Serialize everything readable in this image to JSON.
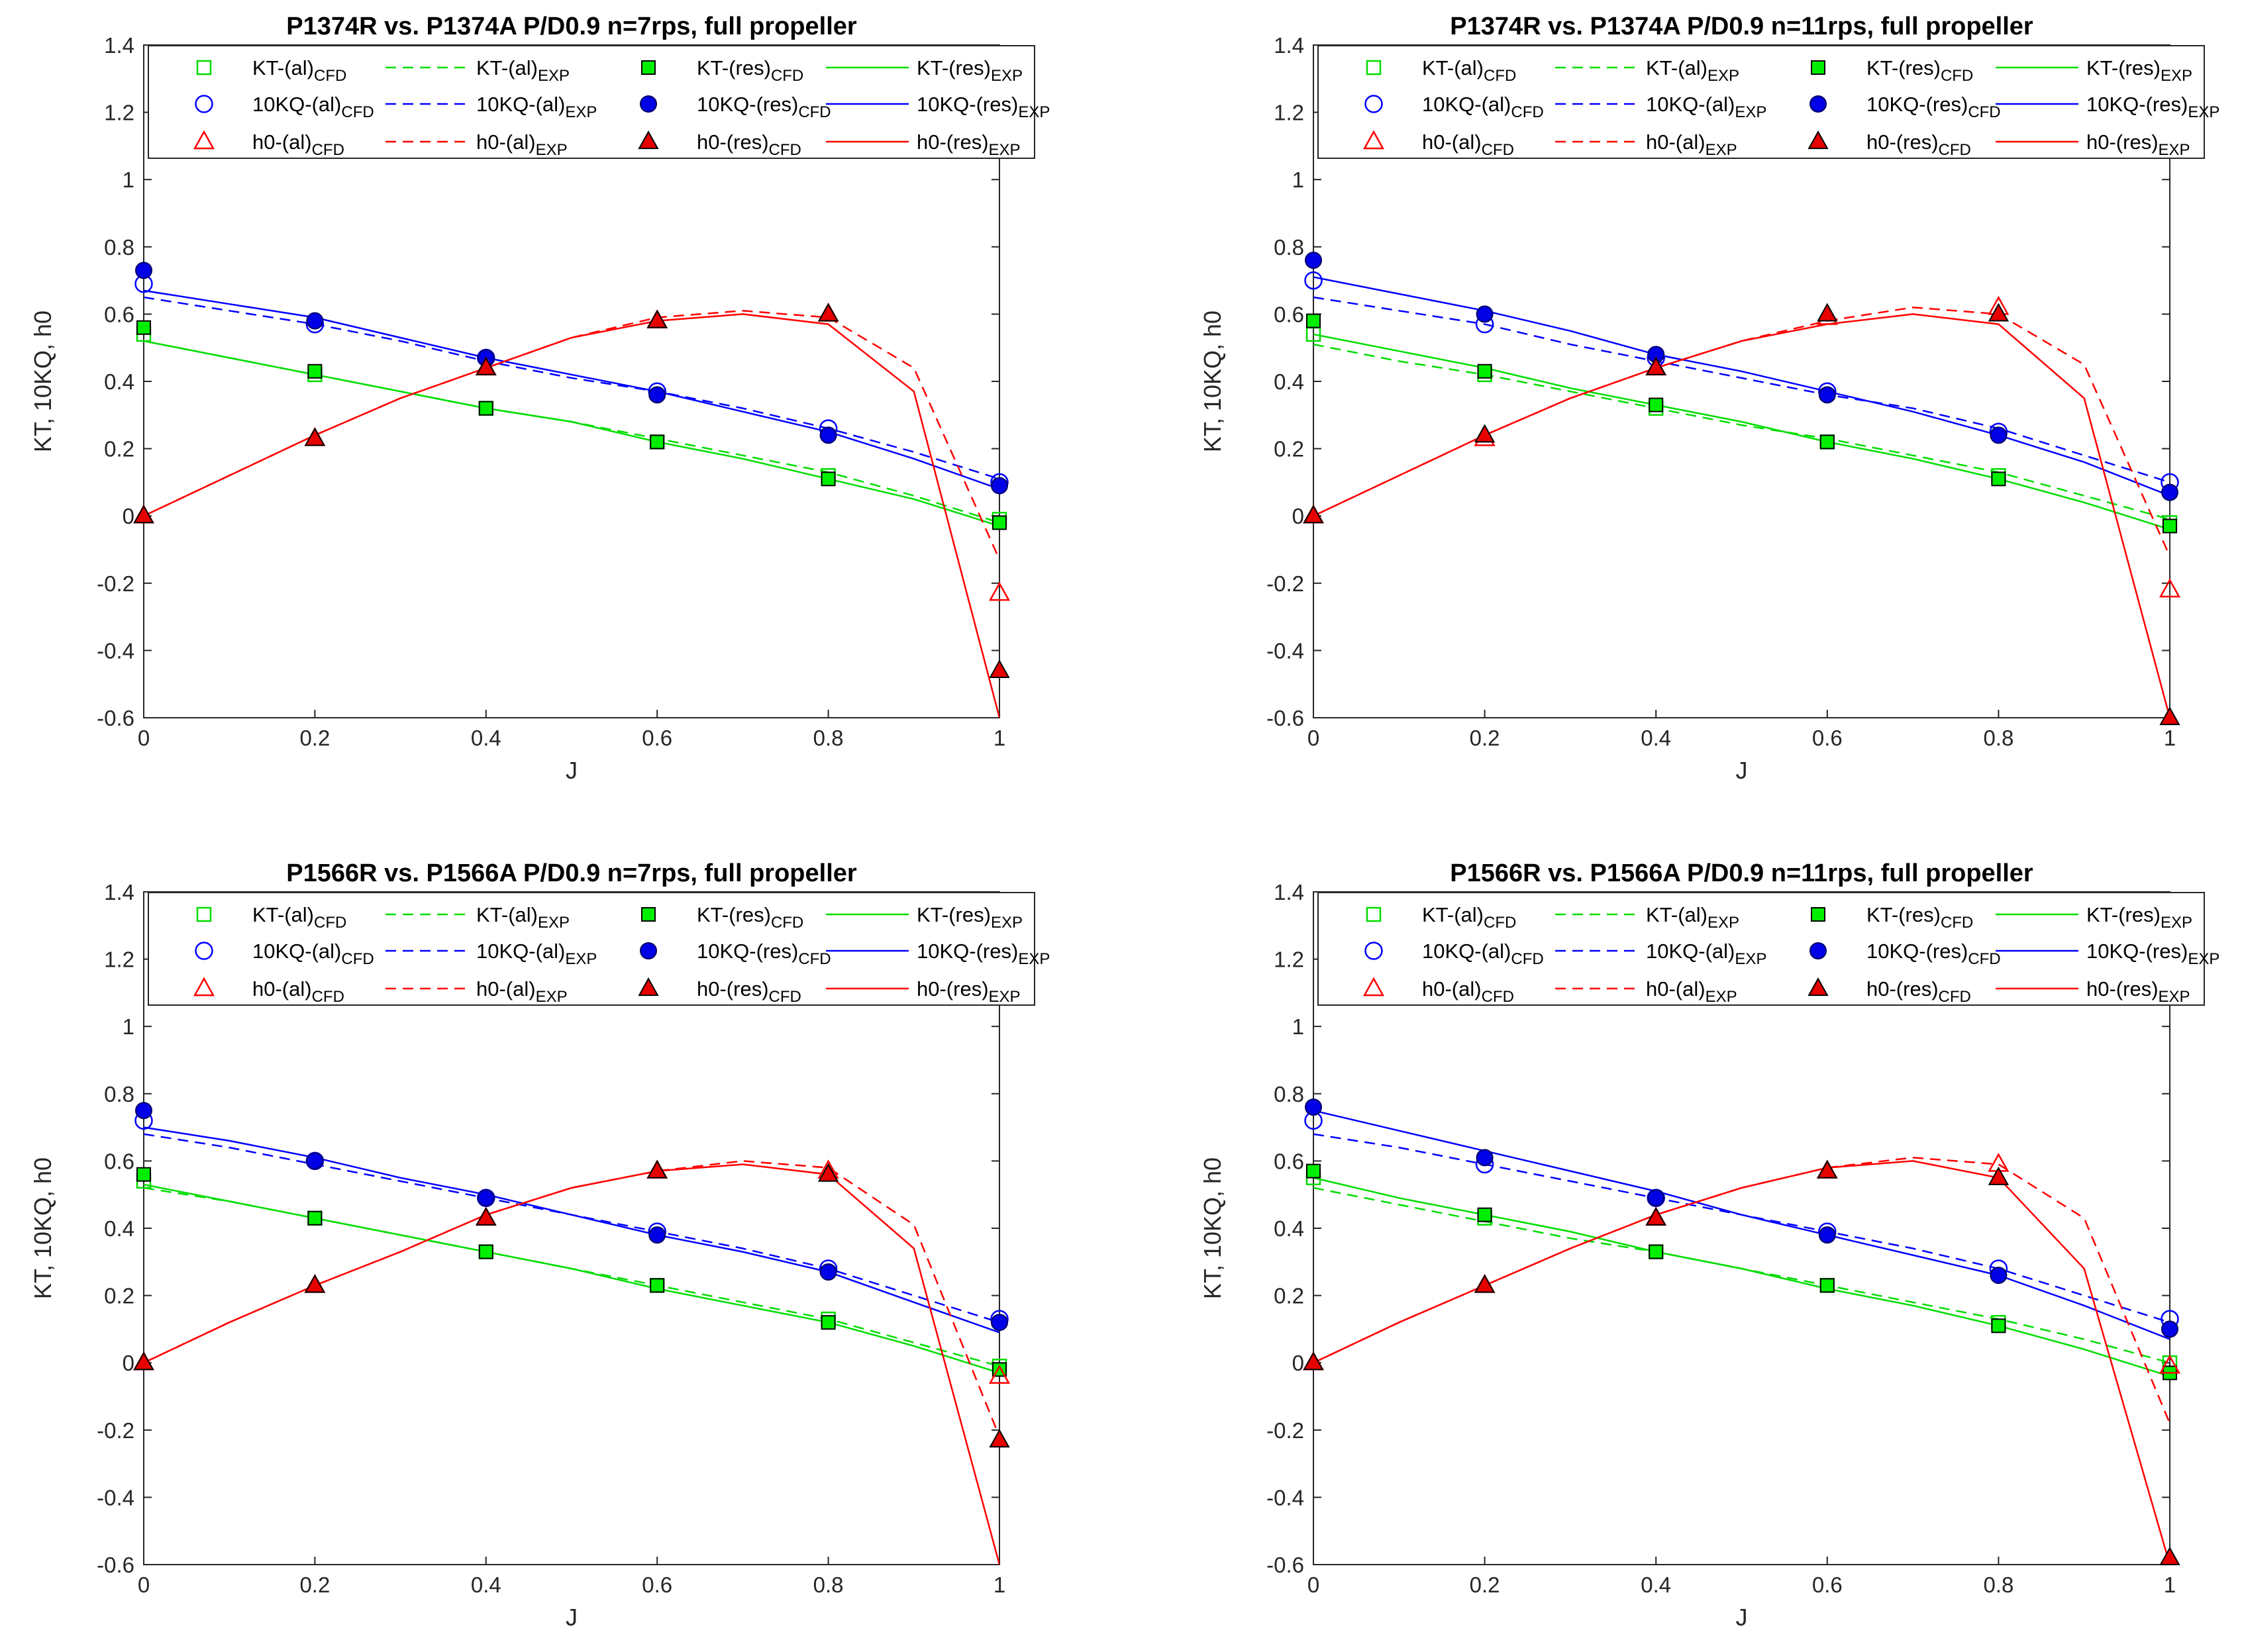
{
  "figure": {
    "colors": {
      "kt": "#00dd00",
      "kq": "#0000ff",
      "h0": "#ff0000",
      "axis": "#262626",
      "fill_kt": "#00ee00",
      "fill_kq": "#0000e6",
      "fill_h0": "#e60000"
    }
  },
  "chart_data": [
    {
      "type": "line",
      "title": "P1374R vs. P1374A P/D0.9 n=7rps, full propeller",
      "xlabel": "J",
      "ylabel": "KT, 10KQ, h0",
      "xlim": [
        0,
        1
      ],
      "ylim": [
        -0.6,
        1.4
      ],
      "x_ticks": [
        "0",
        "0.2",
        "0.4",
        "0.6",
        "0.8",
        "1"
      ],
      "y_ticks": [
        "-0.6",
        "-0.4",
        "-0.2",
        "0",
        "0.2",
        "0.4",
        "0.6",
        "0.8",
        "1",
        "1.2",
        "1.4"
      ],
      "legend": {
        "position": "top",
        "entries": [
          {
            "base": "KT-(al)",
            "sub": "CFD"
          },
          {
            "base": "KT-(al)",
            "sub": "EXP"
          },
          {
            "base": "KT-(res)",
            "sub": "CFD"
          },
          {
            "base": "KT-(res)",
            "sub": "EXP"
          },
          {
            "base": "10KQ-(al)",
            "sub": "CFD"
          },
          {
            "base": "10KQ-(al)",
            "sub": "EXP"
          },
          {
            "base": "10KQ-(res)",
            "sub": "CFD"
          },
          {
            "base": "10KQ-(res)",
            "sub": "EXP"
          },
          {
            "base": "h0-(al)",
            "sub": "CFD"
          },
          {
            "base": "h0-(al)",
            "sub": "EXP"
          },
          {
            "base": "h0-(res)",
            "sub": "CFD"
          },
          {
            "base": "h0-(res)",
            "sub": "EXP"
          }
        ]
      },
      "cfd_x": [
        0,
        0.2,
        0.4,
        0.6,
        0.8,
        1.0
      ],
      "exp_x": [
        0,
        0.1,
        0.2,
        0.3,
        0.4,
        0.5,
        0.6,
        0.7,
        0.8,
        0.9,
        1.0
      ],
      "series": [
        {
          "name": "KT-(al) CFD",
          "values": [
            0.54,
            0.42,
            0.32,
            0.22,
            0.12,
            -0.01
          ]
        },
        {
          "name": "KT-(al) EXP",
          "values": [
            0.52,
            0.47,
            0.42,
            0.37,
            0.32,
            0.28,
            0.23,
            0.18,
            0.13,
            0.06,
            -0.02
          ]
        },
        {
          "name": "KT-(res) CFD",
          "values": [
            0.56,
            0.43,
            0.32,
            0.22,
            0.11,
            -0.02
          ]
        },
        {
          "name": "KT-(res) EXP",
          "values": [
            0.52,
            0.47,
            0.42,
            0.37,
            0.32,
            0.28,
            0.22,
            0.17,
            0.11,
            0.05,
            -0.03
          ]
        },
        {
          "name": "10KQ-(al) CFD",
          "values": [
            0.69,
            0.57,
            0.47,
            0.37,
            0.26,
            0.1
          ]
        },
        {
          "name": "10KQ-(al) EXP",
          "values": [
            0.65,
            0.61,
            0.57,
            0.52,
            0.46,
            0.41,
            0.37,
            0.32,
            0.26,
            0.19,
            0.11
          ]
        },
        {
          "name": "10KQ-(res) CFD",
          "values": [
            0.73,
            0.58,
            0.47,
            0.36,
            0.24,
            0.09
          ]
        },
        {
          "name": "10KQ-(res) EXP",
          "values": [
            0.67,
            0.63,
            0.59,
            0.53,
            0.47,
            0.42,
            0.37,
            0.31,
            0.25,
            0.17,
            0.08
          ]
        },
        {
          "name": "h0-(al) CFD",
          "values": [
            0.0,
            0.23,
            0.44,
            0.58,
            0.6,
            -0.23
          ]
        },
        {
          "name": "h0-(al) EXP",
          "values": [
            0.0,
            0.12,
            0.24,
            0.35,
            0.44,
            0.53,
            0.59,
            0.61,
            0.59,
            0.44,
            -0.13
          ]
        },
        {
          "name": "h0-(res) CFD",
          "values": [
            0.0,
            0.23,
            0.44,
            0.58,
            0.6,
            -0.46
          ]
        },
        {
          "name": "h0-(res) EXP",
          "values": [
            0.0,
            0.12,
            0.24,
            0.35,
            0.44,
            0.53,
            0.58,
            0.6,
            0.57,
            0.37,
            -0.6
          ]
        }
      ]
    },
    {
      "type": "line",
      "title": "P1374R vs. P1374A P/D0.9 n=11rps, full propeller",
      "xlabel": "J",
      "ylabel": "KT, 10KQ, h0",
      "xlim": [
        0,
        1
      ],
      "ylim": [
        -0.6,
        1.4
      ],
      "x_ticks": [
        "0",
        "0.2",
        "0.4",
        "0.6",
        "0.8",
        "1"
      ],
      "y_ticks": [
        "-0.6",
        "-0.4",
        "-0.2",
        "0",
        "0.2",
        "0.4",
        "0.6",
        "0.8",
        "1",
        "1.2",
        "1.4"
      ],
      "legend": {
        "position": "top",
        "entries": [
          {
            "base": "KT-(al)",
            "sub": "CFD"
          },
          {
            "base": "KT-(al)",
            "sub": "EXP"
          },
          {
            "base": "KT-(res)",
            "sub": "CFD"
          },
          {
            "base": "KT-(res)",
            "sub": "EXP"
          },
          {
            "base": "10KQ-(al)",
            "sub": "CFD"
          },
          {
            "base": "10KQ-(al)",
            "sub": "EXP"
          },
          {
            "base": "10KQ-(res)",
            "sub": "CFD"
          },
          {
            "base": "10KQ-(res)",
            "sub": "EXP"
          },
          {
            "base": "h0-(al)",
            "sub": "CFD"
          },
          {
            "base": "h0-(al)",
            "sub": "EXP"
          },
          {
            "base": "h0-(res)",
            "sub": "CFD"
          },
          {
            "base": "h0-(res)",
            "sub": "EXP"
          }
        ]
      },
      "cfd_x": [
        0,
        0.2,
        0.4,
        0.6,
        0.8,
        1.0
      ],
      "exp_x": [
        0,
        0.1,
        0.2,
        0.3,
        0.4,
        0.5,
        0.6,
        0.7,
        0.8,
        0.9,
        1.0
      ],
      "series": [
        {
          "name": "KT-(al) CFD",
          "values": [
            0.54,
            0.42,
            0.32,
            0.22,
            0.12,
            -0.02
          ]
        },
        {
          "name": "KT-(al) EXP",
          "values": [
            0.51,
            0.46,
            0.42,
            0.37,
            0.32,
            0.27,
            0.23,
            0.18,
            0.13,
            0.06,
            -0.01
          ]
        },
        {
          "name": "KT-(res) CFD",
          "values": [
            0.58,
            0.43,
            0.33,
            0.22,
            0.11,
            -0.03
          ]
        },
        {
          "name": "KT-(res) EXP",
          "values": [
            0.54,
            0.49,
            0.44,
            0.38,
            0.33,
            0.28,
            0.22,
            0.17,
            0.11,
            0.04,
            -0.04
          ]
        },
        {
          "name": "10KQ-(al) CFD",
          "values": [
            0.7,
            0.57,
            0.47,
            0.37,
            0.25,
            0.1
          ]
        },
        {
          "name": "10KQ-(al) EXP",
          "values": [
            0.65,
            0.61,
            0.57,
            0.51,
            0.46,
            0.41,
            0.36,
            0.32,
            0.26,
            0.18,
            0.1
          ]
        },
        {
          "name": "10KQ-(res) CFD",
          "values": [
            0.76,
            0.6,
            0.48,
            0.36,
            0.24,
            0.07
          ]
        },
        {
          "name": "10KQ-(res) EXP",
          "values": [
            0.71,
            0.66,
            0.61,
            0.55,
            0.48,
            0.43,
            0.37,
            0.31,
            0.24,
            0.16,
            0.06
          ]
        },
        {
          "name": "h0-(al) CFD",
          "values": [
            0.0,
            0.23,
            0.44,
            0.59,
            0.62,
            -0.22
          ]
        },
        {
          "name": "h0-(al) EXP",
          "values": [
            0.0,
            0.12,
            0.24,
            0.35,
            0.44,
            0.52,
            0.58,
            0.62,
            0.6,
            0.45,
            -0.12
          ]
        },
        {
          "name": "h0-(res) CFD",
          "values": [
            0.0,
            0.24,
            0.44,
            0.6,
            0.6,
            -0.6
          ]
        },
        {
          "name": "h0-(res) EXP",
          "values": [
            0.0,
            0.12,
            0.24,
            0.35,
            0.44,
            0.52,
            0.57,
            0.6,
            0.57,
            0.35,
            -0.6
          ]
        }
      ]
    },
    {
      "type": "line",
      "title": "P1566R vs. P1566A P/D0.9 n=7rps, full propeller",
      "xlabel": "J",
      "ylabel": "KT, 10KQ, h0",
      "xlim": [
        0,
        1
      ],
      "ylim": [
        -0.6,
        1.4
      ],
      "x_ticks": [
        "0",
        "0.2",
        "0.4",
        "0.6",
        "0.8",
        "1"
      ],
      "y_ticks": [
        "-0.6",
        "-0.4",
        "-0.2",
        "0",
        "0.2",
        "0.4",
        "0.6",
        "0.8",
        "1",
        "1.2",
        "1.4"
      ],
      "legend": {
        "position": "top",
        "entries": [
          {
            "base": "KT-(al)",
            "sub": "CFD"
          },
          {
            "base": "KT-(al)",
            "sub": "EXP"
          },
          {
            "base": "KT-(res)",
            "sub": "CFD"
          },
          {
            "base": "KT-(res)",
            "sub": "EXP"
          },
          {
            "base": "10KQ-(al)",
            "sub": "CFD"
          },
          {
            "base": "10KQ-(al)",
            "sub": "EXP"
          },
          {
            "base": "10KQ-(res)",
            "sub": "CFD"
          },
          {
            "base": "10KQ-(res)",
            "sub": "EXP"
          },
          {
            "base": "h0-(al)",
            "sub": "CFD"
          },
          {
            "base": "h0-(al)",
            "sub": "EXP"
          },
          {
            "base": "h0-(res)",
            "sub": "CFD"
          },
          {
            "base": "h0-(res)",
            "sub": "EXP"
          }
        ]
      },
      "cfd_x": [
        0,
        0.2,
        0.4,
        0.6,
        0.8,
        1.0
      ],
      "exp_x": [
        0,
        0.1,
        0.2,
        0.3,
        0.4,
        0.5,
        0.6,
        0.7,
        0.8,
        0.9,
        1.0
      ],
      "series": [
        {
          "name": "KT-(al) CFD",
          "values": [
            0.54,
            0.43,
            0.33,
            0.23,
            0.13,
            -0.01
          ]
        },
        {
          "name": "KT-(al) EXP",
          "values": [
            0.52,
            0.48,
            0.43,
            0.38,
            0.33,
            0.28,
            0.23,
            0.18,
            0.13,
            0.06,
            -0.01
          ]
        },
        {
          "name": "KT-(res) CFD",
          "values": [
            0.56,
            0.43,
            0.33,
            0.23,
            0.12,
            -0.02
          ]
        },
        {
          "name": "KT-(res) EXP",
          "values": [
            0.53,
            0.48,
            0.43,
            0.38,
            0.33,
            0.28,
            0.22,
            0.17,
            0.12,
            0.05,
            -0.03
          ]
        },
        {
          "name": "10KQ-(al) CFD",
          "values": [
            0.72,
            0.6,
            0.49,
            0.39,
            0.28,
            0.13
          ]
        },
        {
          "name": "10KQ-(al) EXP",
          "values": [
            0.68,
            0.64,
            0.59,
            0.54,
            0.49,
            0.44,
            0.39,
            0.34,
            0.28,
            0.2,
            0.12
          ]
        },
        {
          "name": "10KQ-(res) CFD",
          "values": [
            0.75,
            0.6,
            0.49,
            0.38,
            0.27,
            0.12
          ]
        },
        {
          "name": "10KQ-(res) EXP",
          "values": [
            0.7,
            0.66,
            0.61,
            0.55,
            0.5,
            0.44,
            0.38,
            0.33,
            0.27,
            0.18,
            0.09
          ]
        },
        {
          "name": "h0-(al) CFD",
          "values": [
            0.0,
            0.23,
            0.43,
            0.57,
            0.57,
            -0.04
          ]
        },
        {
          "name": "h0-(al) EXP",
          "values": [
            0.0,
            0.12,
            0.23,
            0.33,
            0.44,
            0.52,
            0.57,
            0.6,
            0.58,
            0.41,
            -0.22
          ]
        },
        {
          "name": "h0-(res) CFD",
          "values": [
            0.0,
            0.23,
            0.43,
            0.57,
            0.56,
            -0.23
          ]
        },
        {
          "name": "h0-(res) EXP",
          "values": [
            0.0,
            0.12,
            0.23,
            0.33,
            0.44,
            0.52,
            0.57,
            0.59,
            0.56,
            0.34,
            -0.6
          ]
        }
      ]
    },
    {
      "type": "line",
      "title": "P1566R vs. P1566A P/D0.9 n=11rps, full propeller",
      "xlabel": "J",
      "ylabel": "KT, 10KQ, h0",
      "xlim": [
        0,
        1
      ],
      "ylim": [
        -0.6,
        1.4
      ],
      "x_ticks": [
        "0",
        "0.2",
        "0.4",
        "0.6",
        "0.8",
        "1"
      ],
      "y_ticks": [
        "-0.6",
        "-0.4",
        "-0.2",
        "0",
        "0.2",
        "0.4",
        "0.6",
        "0.8",
        "1",
        "1.2",
        "1.4"
      ],
      "legend": {
        "position": "top",
        "entries": [
          {
            "base": "KT-(al)",
            "sub": "CFD"
          },
          {
            "base": "KT-(al)",
            "sub": "EXP"
          },
          {
            "base": "KT-(res)",
            "sub": "CFD"
          },
          {
            "base": "KT-(res)",
            "sub": "EXP"
          },
          {
            "base": "10KQ-(al)",
            "sub": "CFD"
          },
          {
            "base": "10KQ-(al)",
            "sub": "EXP"
          },
          {
            "base": "10KQ-(res)",
            "sub": "CFD"
          },
          {
            "base": "10KQ-(res)",
            "sub": "EXP"
          },
          {
            "base": "h0-(al)",
            "sub": "CFD"
          },
          {
            "base": "h0-(al)",
            "sub": "EXP"
          },
          {
            "base": "h0-(res)",
            "sub": "CFD"
          },
          {
            "base": "h0-(res)",
            "sub": "EXP"
          }
        ]
      },
      "cfd_x": [
        0,
        0.2,
        0.4,
        0.6,
        0.8,
        1.0
      ],
      "exp_x": [
        0,
        0.1,
        0.2,
        0.3,
        0.4,
        0.5,
        0.6,
        0.7,
        0.8,
        0.9,
        1.0
      ],
      "series": [
        {
          "name": "KT-(al) CFD",
          "values": [
            0.55,
            0.43,
            0.33,
            0.23,
            0.12,
            0.0
          ]
        },
        {
          "name": "KT-(al) EXP",
          "values": [
            0.52,
            0.47,
            0.42,
            0.37,
            0.33,
            0.28,
            0.23,
            0.18,
            0.13,
            0.07,
            0.0
          ]
        },
        {
          "name": "KT-(res) CFD",
          "values": [
            0.57,
            0.44,
            0.33,
            0.23,
            0.11,
            -0.03
          ]
        },
        {
          "name": "KT-(res) EXP",
          "values": [
            0.55,
            0.49,
            0.44,
            0.39,
            0.33,
            0.28,
            0.22,
            0.17,
            0.11,
            0.04,
            -0.04
          ]
        },
        {
          "name": "10KQ-(al) CFD",
          "values": [
            0.72,
            0.59,
            0.49,
            0.39,
            0.28,
            0.13
          ]
        },
        {
          "name": "10KQ-(al) EXP",
          "values": [
            0.68,
            0.64,
            0.59,
            0.54,
            0.49,
            0.44,
            0.39,
            0.34,
            0.28,
            0.2,
            0.12
          ]
        },
        {
          "name": "10KQ-(res) CFD",
          "values": [
            0.76,
            0.61,
            0.49,
            0.38,
            0.26,
            0.1
          ]
        },
        {
          "name": "10KQ-(res) EXP",
          "values": [
            0.75,
            0.69,
            0.63,
            0.57,
            0.51,
            0.44,
            0.38,
            0.32,
            0.26,
            0.17,
            0.07
          ]
        },
        {
          "name": "h0-(al) CFD",
          "values": [
            0.0,
            0.23,
            0.43,
            0.57,
            0.59,
            -0.01
          ]
        },
        {
          "name": "h0-(al) EXP",
          "values": [
            0.0,
            0.12,
            0.23,
            0.34,
            0.44,
            0.52,
            0.58,
            0.61,
            0.59,
            0.43,
            -0.18
          ]
        },
        {
          "name": "h0-(res) CFD",
          "values": [
            0.0,
            0.23,
            0.43,
            0.57,
            0.55,
            -0.58
          ]
        },
        {
          "name": "h0-(res) EXP",
          "values": [
            0.0,
            0.12,
            0.23,
            0.34,
            0.44,
            0.52,
            0.58,
            0.6,
            0.55,
            0.28,
            -0.6
          ]
        }
      ]
    }
  ]
}
